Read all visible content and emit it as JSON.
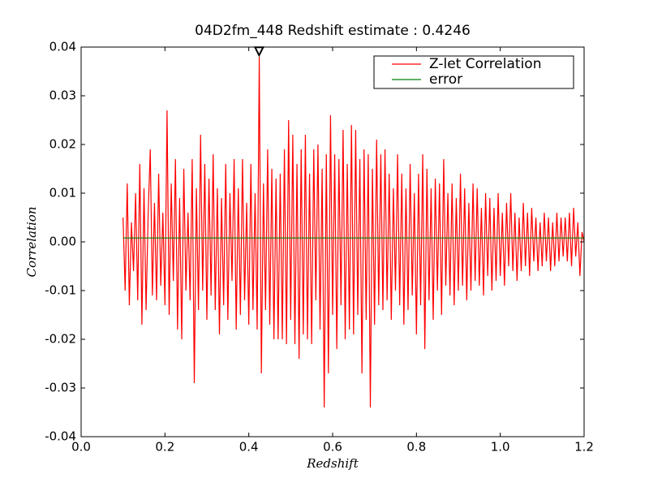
{
  "chart_data": {
    "type": "line",
    "title": "04D2fm_448 Redshift estimate : 0.4246",
    "xlabel": "Redshift",
    "ylabel": "Correlation",
    "xlim": [
      0,
      1.2
    ],
    "xticks": [
      {
        "value": 0,
        "label": "0.0"
      },
      0.2,
      0.4,
      0.6,
      0.8,
      {
        "value": 1,
        "label": "1.0"
      },
      1.2
    ],
    "ylim": [
      -0.04,
      0.04
    ],
    "yticks": [
      -0.04,
      -0.03,
      -0.02,
      -0.01,
      {
        "value": 0,
        "label": "0.00"
      },
      0.01,
      0.02,
      0.03,
      0.04
    ],
    "grid": false,
    "legend": "upper right",
    "marker": {
      "x": 0.4246,
      "y": 0.0388
    },
    "series": [
      {
        "name": "Z-let Correlation",
        "color": "#ff0000",
        "x": [
          0.1,
          0.105,
          0.11,
          0.115,
          0.12,
          0.125,
          0.13,
          0.135,
          0.14,
          0.145,
          0.15,
          0.155,
          0.16,
          0.165,
          0.17,
          0.175,
          0.18,
          0.185,
          0.19,
          0.195,
          0.2,
          0.205,
          0.21,
          0.215,
          0.22,
          0.225,
          0.23,
          0.235,
          0.24,
          0.245,
          0.25,
          0.255,
          0.26,
          0.265,
          0.27,
          0.275,
          0.28,
          0.285,
          0.29,
          0.295,
          0.3,
          0.305,
          0.31,
          0.315,
          0.32,
          0.325,
          0.33,
          0.335,
          0.34,
          0.345,
          0.35,
          0.355,
          0.36,
          0.365,
          0.37,
          0.375,
          0.38,
          0.385,
          0.39,
          0.395,
          0.4,
          0.405,
          0.41,
          0.415,
          0.42,
          0.425,
          0.43,
          0.435,
          0.44,
          0.445,
          0.45,
          0.455,
          0.46,
          0.465,
          0.47,
          0.475,
          0.48,
          0.485,
          0.49,
          0.495,
          0.5,
          0.505,
          0.51,
          0.515,
          0.52,
          0.525,
          0.53,
          0.535,
          0.54,
          0.545,
          0.55,
          0.555,
          0.56,
          0.565,
          0.57,
          0.575,
          0.58,
          0.585,
          0.59,
          0.595,
          0.6,
          0.605,
          0.61,
          0.615,
          0.62,
          0.625,
          0.63,
          0.635,
          0.64,
          0.645,
          0.65,
          0.655,
          0.66,
          0.665,
          0.67,
          0.675,
          0.68,
          0.685,
          0.69,
          0.695,
          0.7,
          0.705,
          0.71,
          0.715,
          0.72,
          0.725,
          0.73,
          0.735,
          0.74,
          0.745,
          0.75,
          0.755,
          0.76,
          0.765,
          0.77,
          0.775,
          0.78,
          0.785,
          0.79,
          0.795,
          0.8,
          0.805,
          0.81,
          0.815,
          0.82,
          0.825,
          0.83,
          0.835,
          0.84,
          0.845,
          0.85,
          0.855,
          0.86,
          0.865,
          0.87,
          0.875,
          0.88,
          0.885,
          0.89,
          0.895,
          0.9,
          0.905,
          0.91,
          0.915,
          0.92,
          0.925,
          0.93,
          0.935,
          0.94,
          0.945,
          0.95,
          0.955,
          0.96,
          0.965,
          0.97,
          0.975,
          0.98,
          0.985,
          0.99,
          0.995,
          1.0,
          1.005,
          1.01,
          1.015,
          1.02,
          1.025,
          1.03,
          1.035,
          1.04,
          1.045,
          1.05,
          1.055,
          1.06,
          1.065,
          1.07,
          1.075,
          1.08,
          1.085,
          1.09,
          1.095,
          1.1,
          1.105,
          1.11,
          1.115,
          1.12,
          1.125,
          1.13,
          1.135,
          1.14,
          1.145,
          1.15,
          1.155,
          1.16,
          1.165,
          1.17,
          1.175,
          1.18,
          1.185,
          1.19,
          1.195,
          1.2
        ],
        "values": [
          0.005,
          -0.01,
          0.012,
          -0.013,
          0.004,
          -0.006,
          0.01,
          -0.012,
          0.016,
          -0.017,
          0.011,
          -0.014,
          0.006,
          0.019,
          -0.011,
          0.008,
          -0.012,
          0.014,
          -0.009,
          0.006,
          -0.013,
          0.027,
          -0.015,
          0.012,
          -0.008,
          0.017,
          -0.018,
          0.009,
          -0.02,
          0.015,
          -0.01,
          0.006,
          -0.012,
          0.017,
          -0.029,
          0.011,
          -0.014,
          0.022,
          -0.01,
          0.016,
          -0.016,
          0.013,
          -0.011,
          0.018,
          -0.014,
          0.011,
          -0.019,
          0.009,
          -0.013,
          0.016,
          -0.016,
          0.01,
          -0.008,
          0.017,
          -0.018,
          0.011,
          -0.015,
          0.017,
          -0.012,
          0.008,
          -0.017,
          0.016,
          -0.014,
          0.01,
          -0.018,
          0.038,
          -0.027,
          0.012,
          -0.014,
          0.019,
          -0.017,
          0.015,
          -0.02,
          0.013,
          -0.02,
          0.014,
          -0.02,
          0.019,
          -0.021,
          0.025,
          -0.016,
          0.022,
          -0.021,
          0.016,
          -0.024,
          0.019,
          -0.019,
          0.022,
          -0.02,
          0.014,
          -0.021,
          0.019,
          -0.012,
          0.02,
          -0.018,
          0.015,
          -0.034,
          0.018,
          -0.027,
          0.026,
          -0.015,
          0.018,
          -0.022,
          0.017,
          -0.013,
          0.023,
          -0.02,
          0.016,
          -0.018,
          0.024,
          -0.019,
          0.023,
          -0.015,
          0.017,
          -0.027,
          0.019,
          -0.016,
          0.018,
          -0.034,
          0.015,
          -0.017,
          0.021,
          -0.013,
          0.018,
          -0.014,
          0.019,
          -0.012,
          0.014,
          -0.016,
          0.011,
          -0.01,
          0.018,
          -0.013,
          0.014,
          -0.017,
          0.011,
          -0.014,
          0.016,
          -0.011,
          0.01,
          -0.019,
          0.014,
          -0.013,
          0.018,
          -0.022,
          0.015,
          -0.012,
          0.011,
          -0.016,
          0.013,
          -0.01,
          0.012,
          -0.015,
          0.017,
          -0.009,
          0.01,
          -0.011,
          0.012,
          -0.013,
          0.009,
          -0.01,
          0.014,
          -0.009,
          0.011,
          -0.012,
          0.008,
          -0.01,
          0.012,
          -0.008,
          0.011,
          -0.009,
          0.007,
          -0.011,
          0.01,
          -0.007,
          0.009,
          -0.01,
          0.007,
          -0.008,
          0.01,
          -0.007,
          0.006,
          -0.009,
          0.008,
          -0.005,
          0.01,
          -0.006,
          0.006,
          -0.008,
          0.005,
          -0.006,
          0.008,
          -0.005,
          0.006,
          -0.007,
          0.007,
          -0.004,
          0.005,
          -0.006,
          0.004,
          -0.005,
          0.006,
          -0.004,
          0.005,
          -0.006,
          0.004,
          -0.005,
          0.006,
          -0.004,
          0.005,
          -0.003,
          0.005,
          -0.004,
          0.006,
          -0.005,
          0.007,
          -0.003,
          0.004,
          -0.007,
          0.002,
          0.0
        ]
      },
      {
        "name": "error",
        "color": "#008000",
        "x": [
          0.1,
          1.2
        ],
        "values": [
          0.0008,
          0.0008
        ]
      }
    ]
  }
}
